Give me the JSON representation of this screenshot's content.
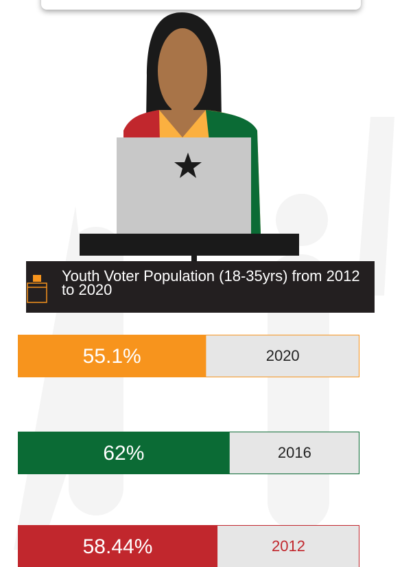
{
  "chart_data": {
    "type": "bar",
    "title": "Youth Voter Population (18-35yrs) from 2012 to 2020",
    "categories": [
      "2020",
      "2016",
      "2012"
    ],
    "values": [
      55.1,
      62,
      58.44
    ],
    "value_labels": [
      "55.1%",
      "62%",
      "58.44%"
    ],
    "colors": [
      "#f7941d",
      "#0b6b35",
      "#c1272d"
    ],
    "label_colors": [
      "#222222",
      "#222222",
      "#c1272d"
    ],
    "xlim": [
      0,
      100
    ]
  }
}
